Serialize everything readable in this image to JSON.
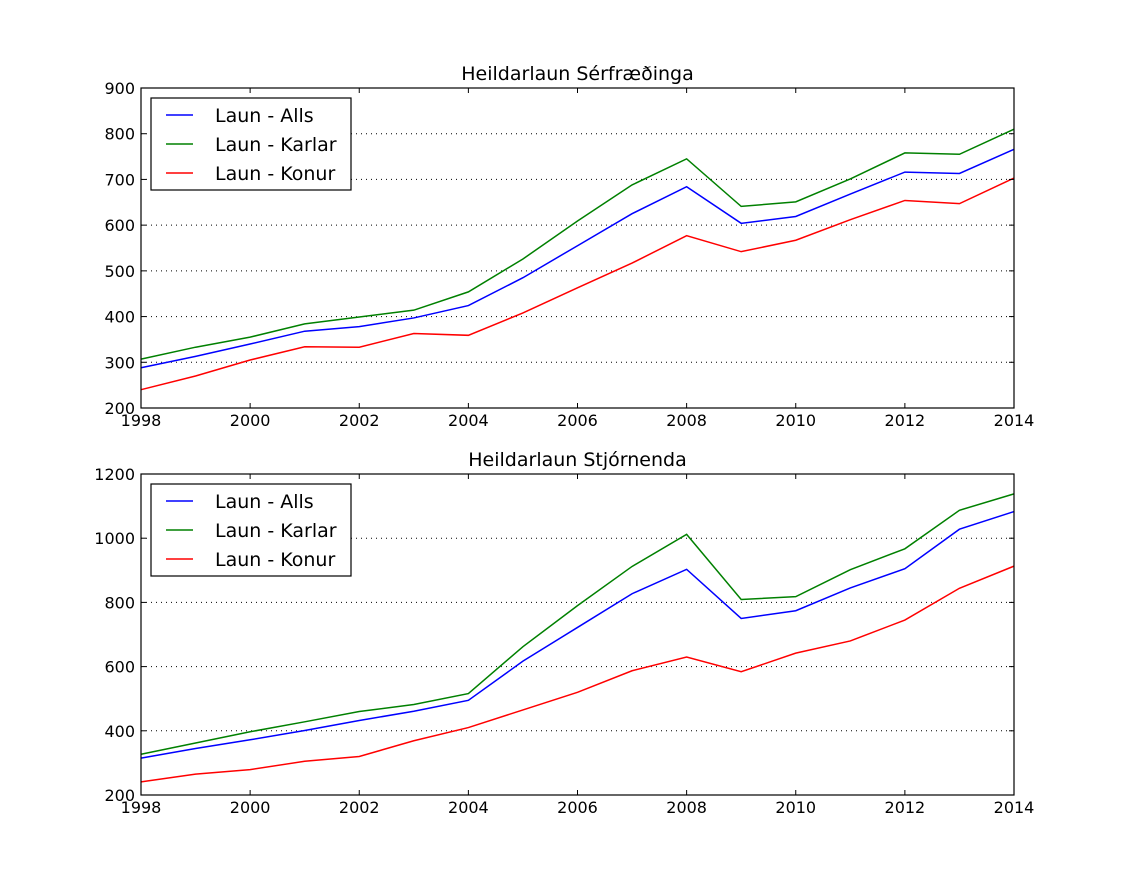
{
  "chart_data": [
    {
      "type": "line",
      "title": "Heildarlaun Sérfræðinga",
      "xlabel": "",
      "ylabel": "",
      "x": [
        1998,
        1999,
        2000,
        2001,
        2002,
        2003,
        2004,
        2005,
        2006,
        2007,
        2008,
        2009,
        2010,
        2011,
        2012,
        2013,
        2014
      ],
      "xlim": [
        1998,
        2014
      ],
      "ylim": [
        200,
        900
      ],
      "xticks": [
        1998,
        2000,
        2002,
        2004,
        2006,
        2008,
        2010,
        2012,
        2014
      ],
      "yticks": [
        200,
        300,
        400,
        500,
        600,
        700,
        800,
        900
      ],
      "grid": "y-dotted",
      "legend_position": "upper-left",
      "series": [
        {
          "name": "Laun - Alls",
          "color": "#0000ff",
          "values": [
            288,
            313,
            340,
            368,
            378,
            397,
            424,
            485,
            555,
            625,
            684,
            604,
            619,
            668,
            716,
            713,
            766
          ]
        },
        {
          "name": "Laun - Karlar",
          "color": "#008000",
          "values": [
            307,
            333,
            355,
            384,
            399,
            414,
            454,
            526,
            609,
            688,
            745,
            641,
            651,
            701,
            758,
            755,
            810
          ]
        },
        {
          "name": "Laun - Konur",
          "color": "#ff0000",
          "values": [
            240,
            270,
            305,
            334,
            333,
            363,
            359,
            408,
            463,
            517,
            577,
            542,
            567,
            612,
            654,
            647,
            703
          ]
        }
      ]
    },
    {
      "type": "line",
      "title": "Heildarlaun Stjórnenda",
      "xlabel": "",
      "ylabel": "",
      "x": [
        1998,
        1999,
        2000,
        2001,
        2002,
        2003,
        2004,
        2005,
        2006,
        2007,
        2008,
        2009,
        2010,
        2011,
        2012,
        2013,
        2014
      ],
      "xlim": [
        1998,
        2014
      ],
      "ylim": [
        200,
        1200
      ],
      "xticks": [
        1998,
        2000,
        2002,
        2004,
        2006,
        2008,
        2010,
        2012,
        2014
      ],
      "yticks": [
        200,
        400,
        600,
        800,
        1000,
        1200
      ],
      "grid": "y-dotted",
      "legend_position": "upper-left",
      "series": [
        {
          "name": "Laun - Alls",
          "color": "#0000ff",
          "values": [
            315,
            345,
            372,
            401,
            432,
            461,
            495,
            617,
            722,
            827,
            903,
            750,
            774,
            845,
            905,
            1028,
            1083
          ]
        },
        {
          "name": "Laun - Karlar",
          "color": "#008000",
          "values": [
            327,
            362,
            397,
            428,
            460,
            482,
            516,
            662,
            790,
            912,
            1012,
            809,
            818,
            902,
            967,
            1087,
            1138
          ]
        },
        {
          "name": "Laun - Konur",
          "color": "#ff0000",
          "values": [
            241,
            265,
            279,
            305,
            320,
            369,
            410,
            465,
            520,
            587,
            630,
            584,
            642,
            680,
            745,
            844,
            913
          ]
        }
      ]
    }
  ]
}
